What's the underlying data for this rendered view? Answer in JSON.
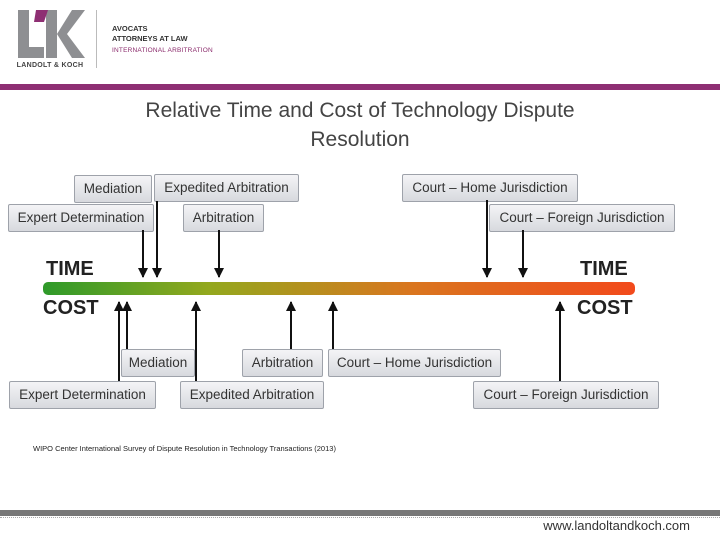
{
  "header": {
    "logo_letters": "LK",
    "logo_name": "LANDOLT & KOCH",
    "firm_line1": "AVOCATS",
    "firm_line2": "ATTORNEYS AT LAW",
    "firm_line3": "INTERNATIONAL ARBITRATION",
    "accent_color": "#8e2f73"
  },
  "title": {
    "line1": "Relative Time and Cost of Technology Dispute",
    "line2": "Resolution"
  },
  "axis": {
    "time_left": "TIME",
    "time_right": "TIME",
    "cost_left": "COST",
    "cost_right": "COST",
    "scale_colors": [
      "#2e9a2a",
      "#93a81e",
      "#d9761f",
      "#f24a1c"
    ]
  },
  "time_boxes": {
    "mediation": "Mediation",
    "expedited_arbitration": "Expedited Arbitration",
    "court_home": "Court – Home Jurisdiction",
    "expert_determination": "Expert Determination",
    "arbitration": "Arbitration",
    "court_foreign": "Court – Foreign Jurisdiction"
  },
  "cost_boxes": {
    "mediation": "Mediation",
    "arbitration": "Arbitration",
    "court_home": "Court – Home Jurisdiction",
    "expert_determination": "Expert Determination",
    "expedited_arbitration": "Expedited Arbitration",
    "court_foreign": "Court – Foreign Jurisdiction"
  },
  "footer": {
    "source": "WIPO Center International Survey of Dispute Resolution in Technology Transactions (2013)",
    "website": "www.landoltandkoch.com"
  }
}
